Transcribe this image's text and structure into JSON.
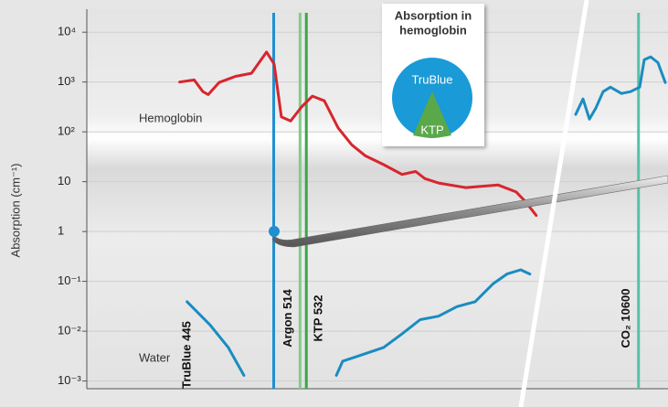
{
  "chart_data": {
    "type": "line",
    "y_label": "Absorption (cm⁻¹)",
    "yscale": "log",
    "ylim": [
      0.0007,
      29000
    ],
    "yticks": [
      {
        "value": 10000,
        "label": "10⁴"
      },
      {
        "value": 1000,
        "label": "10³"
      },
      {
        "value": 100,
        "label": "10²"
      },
      10,
      1,
      {
        "value": 0.1,
        "label": "10⁻¹"
      },
      {
        "value": 0.01,
        "label": "10⁻²"
      },
      {
        "value": 0.001,
        "label": "10⁻³"
      }
    ],
    "grid": true,
    "xscale": "log",
    "xlim": [
      160,
      2000
    ],
    "x2lim": [
      4000,
      13000
    ],
    "series": [
      {
        "name": "Hemoglobin",
        "color": "#d7262e",
        "x": [
          266,
          288,
          302,
          311,
          330,
          361,
          394,
          428,
          446,
          464,
          488,
          518,
          550,
          587,
          633,
          682,
          735,
          812,
          898,
          968,
          1018,
          1097,
          1274,
          1518,
          1678,
          1764,
          1872
        ],
        "values": [
          1000,
          1100,
          640,
          560,
          980,
          1300,
          1500,
          4000,
          2300,
          200,
          165,
          315,
          520,
          420,
          120,
          55,
          33,
          22,
          14,
          16,
          11.5,
          9.4,
          7.6,
          8.6,
          6.2,
          4.0,
          2.1
        ]
      },
      {
        "name": "Water",
        "color": "#1a8cc0",
        "x": [
          277,
          314,
          347,
          378,
          null,
          627,
          649,
          717,
          812,
          898,
          992,
          1097,
          1212,
          1340,
          1480,
          1595,
          1720,
          1808,
          null,
          5488,
          6083,
          6604,
          7125,
          7720,
          8315,
          9208,
          9952,
          10696,
          11068,
          11589,
          12184,
          12779
        ],
        "values": [
          0.039,
          0.0134,
          0.0047,
          0.0013,
          null,
          0.0013,
          0.0025,
          0.0033,
          0.0047,
          0.0088,
          0.017,
          0.02,
          0.031,
          0.039,
          0.09,
          0.14,
          0.17,
          0.14,
          null,
          224,
          457,
          180,
          300,
          640,
          790,
          590,
          640,
          790,
          2800,
          3200,
          2450,
          980
        ]
      }
    ],
    "lasers": [
      {
        "label": "TruBlue 445",
        "wavelength": 445,
        "color": "#1f8fd0"
      },
      {
        "label": "Argon 514",
        "wavelength": 514,
        "color": "#86c98a"
      },
      {
        "label": "KTP 532",
        "wavelength": 532,
        "color": "#3aa64a"
      },
      {
        "label": "CO₂ 10600",
        "wavelength": 10600,
        "color": "#54c2a6"
      }
    ],
    "inset": {
      "title": [
        "Absorption in",
        "hemoglobin"
      ],
      "big": "TruBlue",
      "small": "KTP"
    }
  }
}
